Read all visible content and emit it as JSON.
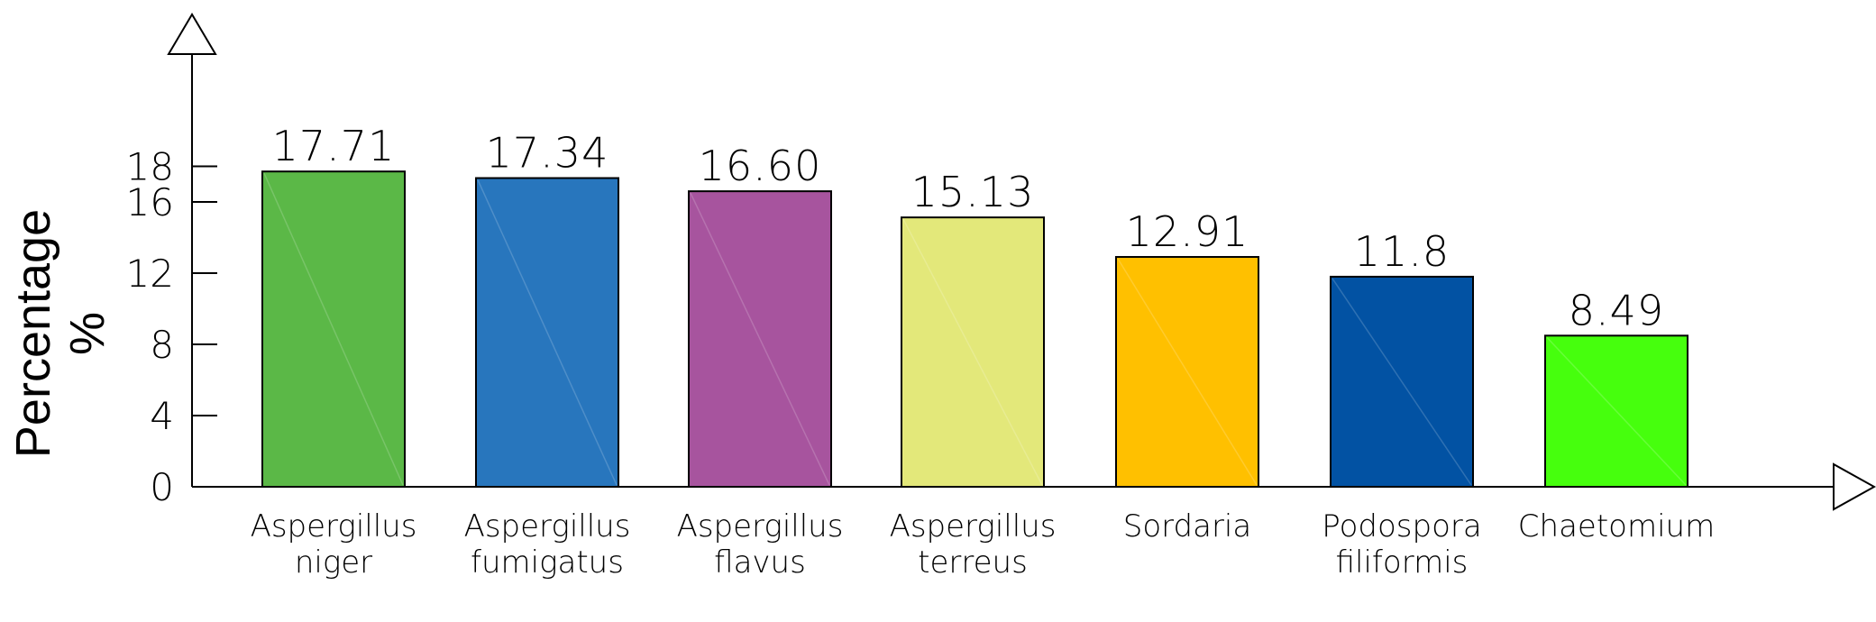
{
  "chart_data": {
    "type": "bar",
    "ylabel": [
      "Percentage",
      "%"
    ],
    "categories": [
      [
        "Aspergillus",
        "niger"
      ],
      [
        "Aspergillus",
        "fumigatus"
      ],
      [
        "Aspergillus",
        "flavus"
      ],
      [
        "Aspergillus",
        "terreus"
      ],
      [
        "Sordaria"
      ],
      [
        "Podospora",
        "filiformis"
      ],
      [
        "Chaetomium"
      ]
    ],
    "values": [
      17.71,
      17.34,
      16.6,
      15.13,
      12.91,
      11.8,
      8.49
    ],
    "value_labels": [
      "17.71",
      "17.34",
      "16.60",
      "15.13",
      "12.91",
      "11.8",
      "8.49"
    ],
    "colors": [
      "#5bb847",
      "#2876bd",
      "#a7549e",
      "#e3e87a",
      "#ffc000",
      "#0252a3",
      "#46ff0d"
    ],
    "yticks": [
      0,
      4,
      8,
      12,
      16,
      18
    ],
    "ylim": [
      0,
      18
    ],
    "grid": false,
    "axis_arrows": true
  }
}
